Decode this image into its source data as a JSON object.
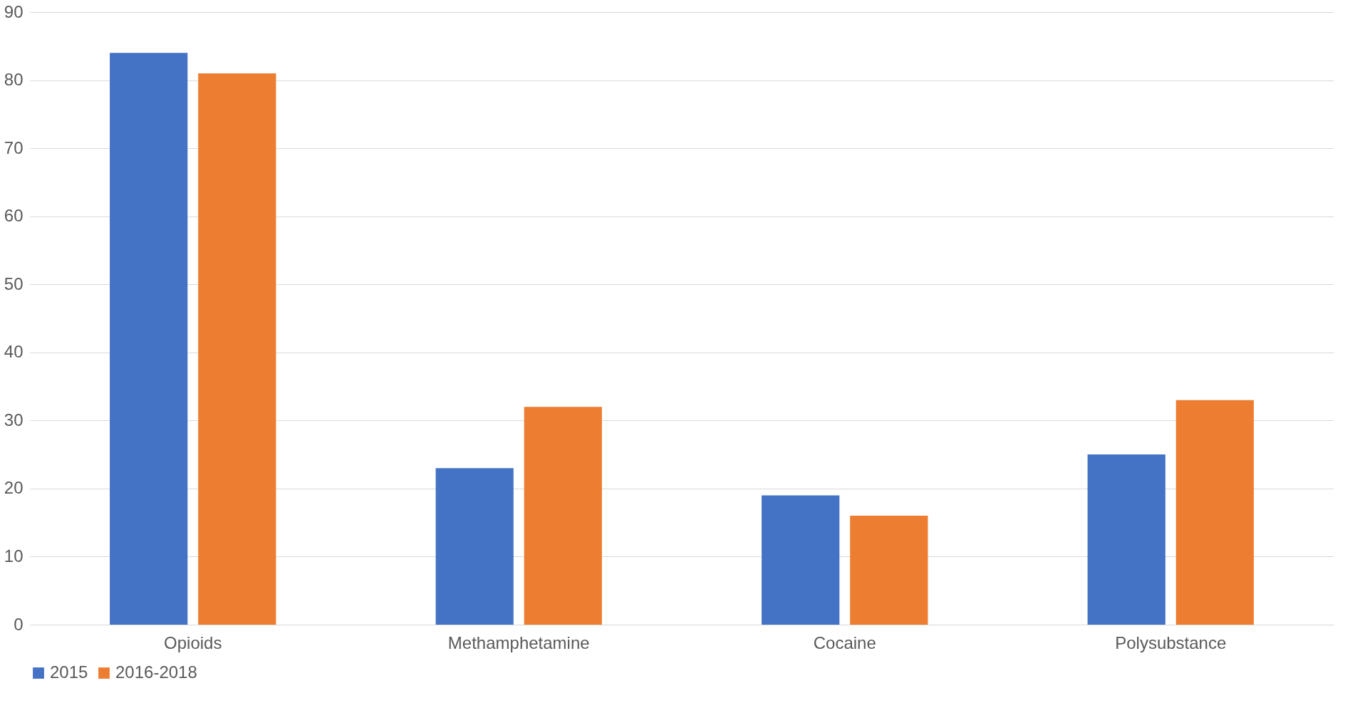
{
  "chart_data": {
    "type": "bar",
    "categories": [
      "Opioids",
      "Methamphetamine",
      "Cocaine",
      "Polysubstance"
    ],
    "series": [
      {
        "name": "2015",
        "color": "#4472c4",
        "values": [
          84,
          23,
          19,
          25
        ]
      },
      {
        "name": "2016-2018",
        "color": "#ed7d31",
        "values": [
          81,
          32,
          16,
          33
        ]
      }
    ],
    "ylim": [
      0,
      90
    ],
    "yticks": [
      0,
      10,
      20,
      30,
      40,
      50,
      60,
      70,
      80,
      90
    ],
    "grid": "y",
    "legend": "bottom"
  }
}
